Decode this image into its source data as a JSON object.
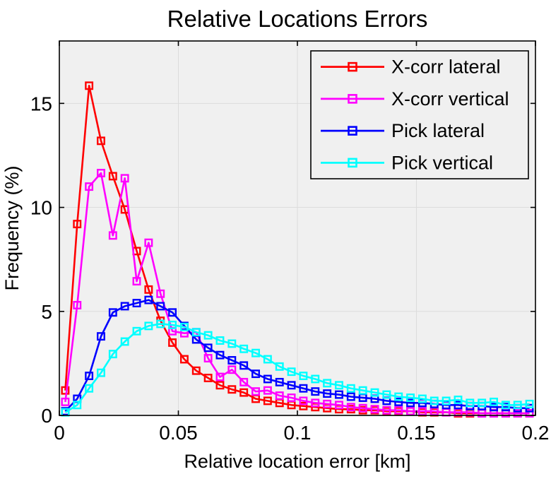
{
  "chart_data": {
    "type": "line",
    "title": "Relative Locations Errors",
    "xlabel": "Relative location error [km]",
    "ylabel": "Frequency (%)",
    "xlim": [
      0,
      0.2
    ],
    "ylim": [
      0,
      18
    ],
    "xticks": [
      0,
      0.05,
      0.1,
      0.15,
      0.2
    ],
    "xtick_labels": [
      "0",
      "0.05",
      "0.1",
      "0.15",
      "0.2"
    ],
    "yticks": [
      0,
      5,
      10,
      15
    ],
    "ytick_labels": [
      "0",
      "5",
      "10",
      "15"
    ],
    "grid": true,
    "legend_position": "top-right",
    "marker": "open-square",
    "plot_bg_color": "#f0f0f0",
    "grid_color": "#dcdcdc",
    "axis_color": "#000000",
    "x": [
      0.0025,
      0.0075,
      0.0125,
      0.0175,
      0.0225,
      0.0275,
      0.0325,
      0.0375,
      0.0425,
      0.0475,
      0.0525,
      0.0575,
      0.0625,
      0.0675,
      0.0725,
      0.0775,
      0.0825,
      0.0875,
      0.0925,
      0.0975,
      0.1025,
      0.1075,
      0.1125,
      0.1175,
      0.1225,
      0.1275,
      0.1325,
      0.1375,
      0.1425,
      0.1475,
      0.1525,
      0.1575,
      0.1625,
      0.1675,
      0.1725,
      0.1775,
      0.1825,
      0.1875,
      0.1925,
      0.1975
    ],
    "series": [
      {
        "name": "X-corr lateral",
        "color": "#ff0000",
        "values": [
          1.2,
          9.2,
          15.85,
          13.2,
          11.5,
          9.9,
          7.9,
          6.05,
          4.55,
          3.5,
          2.7,
          2.15,
          1.8,
          1.45,
          1.25,
          1.1,
          0.8,
          0.7,
          0.6,
          0.5,
          0.45,
          0.4,
          0.35,
          0.3,
          0.3,
          0.25,
          0.25,
          0.2,
          0.2,
          0.2,
          0.15,
          0.15,
          0.15,
          0.1,
          0.1,
          0.1,
          0.1,
          0.1,
          0.1,
          0.1
        ]
      },
      {
        "name": "X-corr vertical",
        "color": "#ff00ff",
        "values": [
          0.65,
          5.3,
          11.0,
          11.65,
          8.65,
          11.4,
          6.45,
          8.3,
          5.85,
          4.05,
          3.95,
          4.0,
          2.75,
          1.85,
          2.2,
          1.6,
          1.15,
          1.2,
          0.95,
          0.85,
          0.7,
          0.6,
          0.55,
          0.5,
          0.4,
          0.35,
          0.3,
          0.25,
          0.25,
          0.2,
          0.2,
          0.2,
          0.15,
          0.15,
          0.15,
          0.1,
          0.1,
          0.1,
          0.1,
          0.1
        ]
      },
      {
        "name": "Pick lateral",
        "color": "#0000ff",
        "values": [
          0.2,
          0.8,
          1.9,
          3.8,
          4.95,
          5.25,
          5.4,
          5.55,
          5.25,
          4.95,
          4.3,
          3.65,
          3.25,
          2.9,
          2.65,
          2.4,
          2.0,
          1.75,
          1.6,
          1.45,
          1.3,
          1.15,
          1.05,
          1.0,
          0.9,
          0.85,
          0.8,
          0.7,
          0.65,
          0.6,
          0.6,
          0.55,
          0.5,
          0.5,
          0.45,
          0.45,
          0.4,
          0.4,
          0.35,
          0.35
        ]
      },
      {
        "name": "Pick vertical",
        "color": "#00ffff",
        "values": [
          0.15,
          0.5,
          1.3,
          2.05,
          2.95,
          3.55,
          4.05,
          4.3,
          4.4,
          4.35,
          4.25,
          4.0,
          3.85,
          3.6,
          3.45,
          3.2,
          3.0,
          2.7,
          2.35,
          2.1,
          1.9,
          1.75,
          1.55,
          1.45,
          1.3,
          1.2,
          1.1,
          1.0,
          0.9,
          0.85,
          0.8,
          0.7,
          0.7,
          0.75,
          0.6,
          0.6,
          0.65,
          0.5,
          0.5,
          0.55
        ]
      }
    ]
  }
}
